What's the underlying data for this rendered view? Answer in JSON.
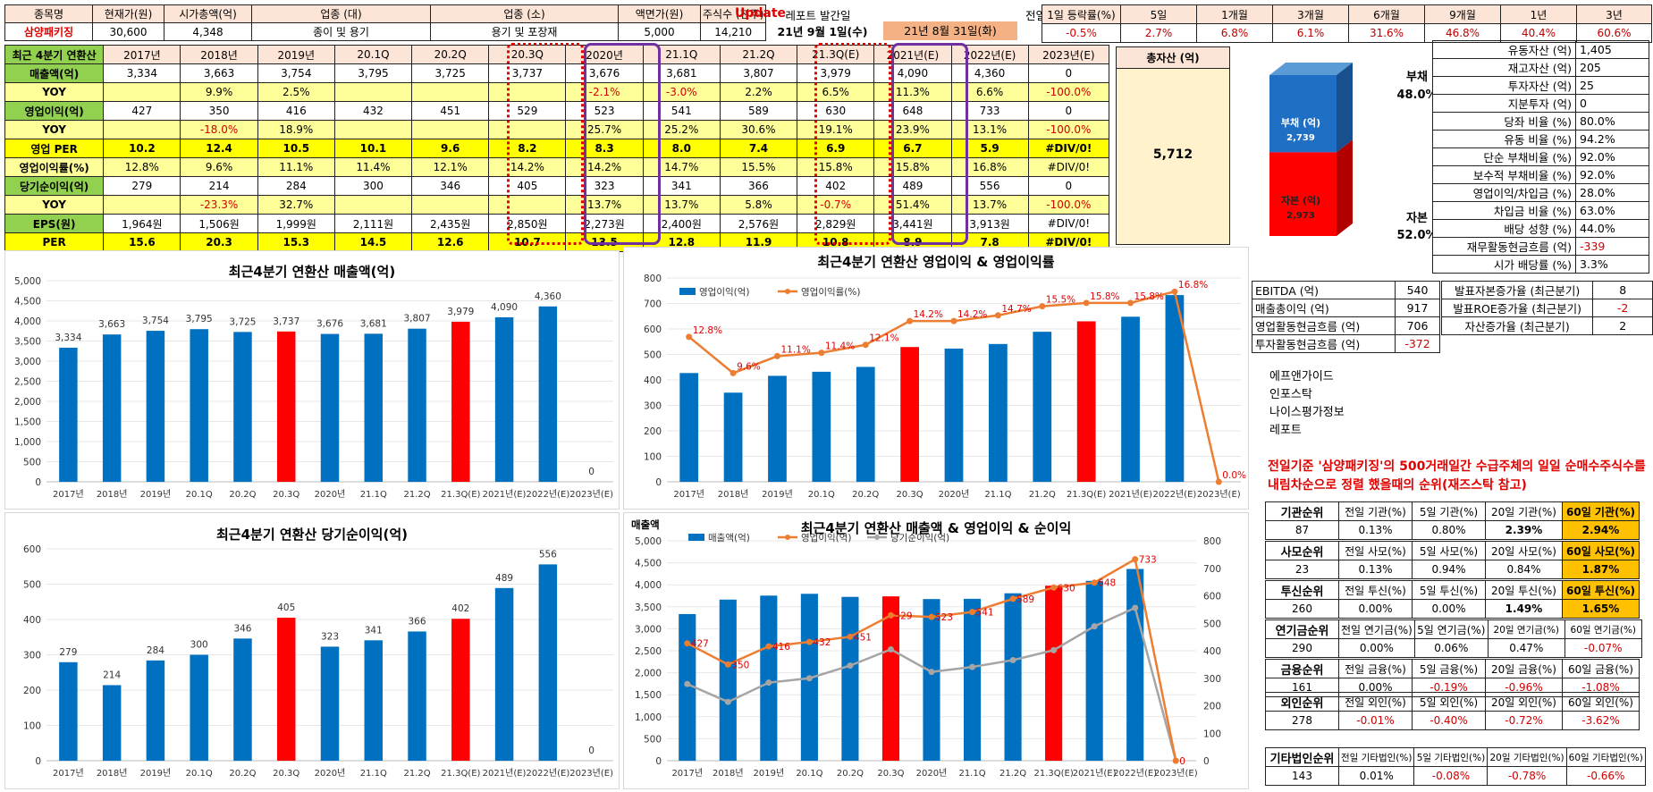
{
  "top": {
    "headers": [
      "종목명",
      "현재가(원)",
      "시가총액(억)",
      "업종 (대)",
      "업종 (소)",
      "액면가(원)",
      "주식수 (천주)"
    ],
    "values": [
      "삼양패키징",
      "30,600",
      "4,348",
      "종이 및 용기",
      "용기 및 포장재",
      "5,000",
      "14,210"
    ],
    "update": "Update",
    "date": "21년 9월 1일(수)",
    "report_label": "레포트 발간일",
    "report_date": "21년 8월 31일(화)",
    "ret_label": "전일 기준",
    "ret_headers": [
      "1일 등락률(%)",
      "5일",
      "1개월",
      "3개월",
      "6개월",
      "9개월",
      "1년",
      "3년"
    ],
    "ret_values": [
      "-0.5%",
      "2.7%",
      "6.8%",
      "6.1%",
      "31.6%",
      "46.8%",
      "40.4%",
      "60.6%"
    ]
  },
  "perf": {
    "header": [
      "최근 4분기 연환산",
      "2017년",
      "2018년",
      "2019년",
      "20.1Q",
      "20.2Q",
      "20.3Q",
      "2020년",
      "21.1Q",
      "21.2Q",
      "21.3Q(E)",
      "2021년(E)",
      "2022년(E)",
      "2023년(E)"
    ],
    "rows": [
      {
        "label": "매출액(억)",
        "style": "n",
        "cells": [
          "3,334",
          "3,663",
          "3,754",
          "3,795",
          "3,725",
          "3,737",
          "3,676",
          "3,681",
          "3,807",
          "3,979",
          "4,090",
          "4,360",
          "0"
        ]
      },
      {
        "label": "YOY",
        "style": "yel",
        "cells": [
          "",
          "9.9%",
          "2.5%",
          "",
          "",
          "",
          "-2.1%",
          "-3.0%",
          "2.2%",
          "6.5%",
          "11.3%",
          "6.6%",
          "-100.0%"
        ]
      },
      {
        "label": "영업이익(억)",
        "style": "n",
        "cells": [
          "427",
          "350",
          "416",
          "432",
          "451",
          "529",
          "523",
          "541",
          "589",
          "630",
          "648",
          "733",
          "0"
        ]
      },
      {
        "label": "YOY",
        "style": "yel",
        "cells": [
          "",
          "-18.0%",
          "18.9%",
          "",
          "",
          "",
          "25.7%",
          "25.2%",
          "30.6%",
          "19.1%",
          "23.9%",
          "13.1%",
          "-100.0%"
        ]
      },
      {
        "label": "영업 PER",
        "style": "per",
        "cells": [
          "10.2",
          "12.4",
          "10.5",
          "10.1",
          "9.6",
          "8.2",
          "8.3",
          "8.0",
          "7.4",
          "6.9",
          "6.7",
          "5.9",
          "#DIV/0!"
        ]
      },
      {
        "label": "영업이익률(%)",
        "style": "yel",
        "cells": [
          "12.8%",
          "9.6%",
          "11.1%",
          "11.4%",
          "12.1%",
          "14.2%",
          "14.2%",
          "14.7%",
          "15.5%",
          "15.8%",
          "15.8%",
          "16.8%",
          "#DIV/0!"
        ]
      },
      {
        "label": "당기순이익(억)",
        "style": "n",
        "cells": [
          "279",
          "214",
          "284",
          "300",
          "346",
          "405",
          "323",
          "341",
          "366",
          "402",
          "489",
          "556",
          "0"
        ]
      },
      {
        "label": "YOY",
        "style": "yel",
        "cells": [
          "",
          "-23.3%",
          "32.7%",
          "",
          "",
          "",
          "13.7%",
          "13.7%",
          "5.8%",
          "-0.7%",
          "51.4%",
          "13.7%",
          "-100.0%"
        ]
      },
      {
        "label": "EPS(원)",
        "style": "n",
        "cells": [
          "1,964원",
          "1,506원",
          "1,999원",
          "2,111원",
          "2,435원",
          "2,850원",
          "2,273원",
          "2,400원",
          "2,576원",
          "2,829원",
          "3,441원",
          "3,913원",
          "#DIV/0!"
        ]
      },
      {
        "label": "PER",
        "style": "per",
        "cells": [
          "15.6",
          "20.3",
          "15.3",
          "14.5",
          "12.6",
          "10.7",
          "13.5",
          "12.8",
          "11.9",
          "10.8",
          "8.9",
          "7.8",
          "#DIV/0!"
        ]
      }
    ]
  },
  "assets": {
    "title": "총자산 (억)",
    "value": "5,712"
  },
  "bs": {
    "debt_label": "부채 (억)",
    "debt_value": "2,739",
    "equity_label": "자본 (억)",
    "equity_value": "2,973",
    "debt_side": "부채",
    "debt_pct": "48.0%",
    "equity_side": "자본",
    "equity_pct": "52.0%",
    "debt_color": "#1f6fc5",
    "equity_color": "#ff0000"
  },
  "ratios": [
    [
      "유동자산 (억)",
      "1,405"
    ],
    [
      "재고자산 (억)",
      "205"
    ],
    [
      "투자자산 (억)",
      "25"
    ],
    [
      "지분투자 (억)",
      "0"
    ],
    [
      "당좌 비율 (%)",
      "80.0%"
    ],
    [
      "유동 비율 (%)",
      "94.2%"
    ],
    [
      "단순 부채비율 (%)",
      "92.0%"
    ],
    [
      "보수적 부채비율 (%)",
      "92.0%"
    ],
    [
      "영업이익/차입금 (%)",
      "28.0%"
    ],
    [
      "차입금 비율 (%)",
      "63.0%"
    ],
    [
      "배당 성향 (%)",
      "44.0%"
    ],
    [
      "재무활동현금흐름 (억)",
      "-339"
    ],
    [
      "시가 배당률 (%)",
      "3.3%"
    ]
  ],
  "cashflow": [
    [
      "EBITDA (억)",
      "540"
    ],
    [
      "매출총이익 (억)",
      "917"
    ],
    [
      "영업활동현금흐름 (억)",
      "706"
    ],
    [
      "투자활동현금흐름 (억)",
      "-372"
    ]
  ],
  "growth": [
    [
      "발표자본증가율 (최근분기)",
      "8"
    ],
    [
      "발표ROE증가율 (최근분기)",
      "-2"
    ],
    [
      "자산증가율 (최근분기)",
      "2"
    ]
  ],
  "sources": [
    "에프앤가이드",
    "인포스탁",
    "나이스평가정보",
    "레포트"
  ],
  "rank_note": "전일기준 '삼양패키징'의 500거래일간 수급주체의 일일 순매수주식수를 내림차순으로 정렬 했을때의 순위(재즈스탁 참고)",
  "rank": [
    {
      "label": "기관순위",
      "rank": "87",
      "heads": [
        "전일 기관(%)",
        "5일 기관(%)",
        "20일 기관(%)",
        "60일 기관(%)"
      ],
      "vals": [
        "0.13%",
        "0.80%",
        "2.39%",
        "2.94%"
      ]
    },
    {
      "label": "사모순위",
      "rank": "23",
      "heads": [
        "전일 사모(%)",
        "5일 사모(%)",
        "20일 사모(%)",
        "60일 사모(%)"
      ],
      "vals": [
        "0.13%",
        "0.94%",
        "0.84%",
        "1.87%"
      ]
    },
    {
      "label": "투신순위",
      "rank": "260",
      "heads": [
        "전일 투신(%)",
        "5일 투신(%)",
        "20일 투신(%)",
        "60일 투신(%)"
      ],
      "vals": [
        "0.00%",
        "0.00%",
        "1.49%",
        "1.65%"
      ]
    },
    {
      "label": "연기금순위",
      "rank": "290",
      "heads": [
        "전일 연기금(%)",
        "5일 연기금(%)",
        "20일 연기금(%)",
        "60일 연기금(%)"
      ],
      "vals": [
        "0.00%",
        "0.06%",
        "0.47%",
        "-0.07%"
      ]
    },
    {
      "label": "금융순위",
      "rank": "161",
      "heads": [
        "전일 금융(%)",
        "5일 금융(%)",
        "20일 금융(%)",
        "60일 금융(%)"
      ],
      "vals": [
        "0.00%",
        "-0.19%",
        "-0.96%",
        "-1.08%"
      ]
    },
    {
      "label": "외인순위",
      "rank": "278",
      "heads": [
        "전일 외인(%)",
        "5일 외인(%)",
        "20일 외인(%)",
        "60일 외인(%)"
      ],
      "vals": [
        "-0.01%",
        "-0.40%",
        "-0.72%",
        "-3.62%"
      ]
    },
    {
      "label": "기타법인순위",
      "rank": "143",
      "heads": [
        "전일 기타법인(%)",
        "5일 기타법인(%)",
        "20일 기타법인(%)",
        "60일 기타법인(%)"
      ],
      "vals": [
        "0.01%",
        "-0.08%",
        "-0.78%",
        "-0.66%"
      ]
    }
  ],
  "chart_data": [
    {
      "type": "bar",
      "title": "최근4분기 연환산 매출액(억)",
      "categories": [
        "2017년",
        "2018년",
        "2019년",
        "20.1Q",
        "20.2Q",
        "20.3Q",
        "2020년",
        "21.1Q",
        "21.2Q",
        "21.3Q(E)",
        "2021년(E)",
        "2022년(E)",
        "2023년(E)"
      ],
      "values": [
        3334,
        3663,
        3754,
        3795,
        3725,
        3737,
        3676,
        3681,
        3807,
        3979,
        4090,
        4360,
        0
      ],
      "ylim": [
        0,
        5000
      ],
      "yticks": [
        "0",
        "500",
        "1,000",
        "1,500",
        "2,000",
        "2,500",
        "3,000",
        "3,500",
        "4,000",
        "4,500",
        "5,000"
      ],
      "labels": [
        "3,334",
        "3,663",
        "3,754",
        "3,795",
        "3,725",
        "3,737",
        "3,676",
        "3,681",
        "3,807",
        "3,979",
        "4,090",
        "4,360",
        "0"
      ],
      "highlight": [
        "20.3Q",
        "21.3Q(E)"
      ],
      "bar_color": "#0070c0",
      "highlight_color": "#ff0000"
    },
    {
      "type": "bar+line",
      "title": "최근4분기 연환산 영업이익 & 영업이익률",
      "categories": [
        "2017년",
        "2018년",
        "2019년",
        "20.1Q",
        "20.2Q",
        "20.3Q",
        "2020년",
        "21.1Q",
        "21.2Q",
        "21.3Q(E)",
        "2021년(E)",
        "2022년(E)",
        "2023년(E)"
      ],
      "series": [
        {
          "name": "영업이익(억)",
          "values": [
            427,
            350,
            416,
            432,
            451,
            529,
            523,
            541,
            589,
            630,
            648,
            733,
            0
          ]
        },
        {
          "name": "영업이익률(%)",
          "values": [
            12.8,
            9.6,
            11.1,
            11.4,
            12.1,
            14.2,
            14.2,
            14.7,
            15.5,
            15.8,
            15.8,
            16.8,
            0
          ],
          "labels": [
            "12.8%",
            "9.6%",
            "11.1%",
            "11.4%",
            "12.1%",
            "14.2%",
            "14.2%",
            "14.7%",
            "15.5%",
            "15.8%",
            "15.8%",
            "16.8%",
            "0.0%"
          ]
        }
      ],
      "ylim": [
        0,
        800
      ],
      "yticks": [
        "0",
        "100",
        "200",
        "300",
        "400",
        "500",
        "600",
        "700",
        "800"
      ],
      "highlight": [
        "20.3Q",
        "21.3Q(E)"
      ],
      "legend": "top-left",
      "bar_color": "#0070c0",
      "highlight_color": "#ff0000",
      "line_color": "#ed7d31"
    },
    {
      "type": "bar",
      "title": "최근4분기 연환산 당기순이익(억)",
      "categories": [
        "2017년",
        "2018년",
        "2019년",
        "20.1Q",
        "20.2Q",
        "20.3Q",
        "2020년",
        "21.1Q",
        "21.2Q",
        "21.3Q(E)",
        "2021년(E)",
        "2022년(E)",
        "2023년(E)"
      ],
      "values": [
        279,
        214,
        284,
        300,
        346,
        405,
        323,
        341,
        366,
        402,
        489,
        556,
        0
      ],
      "ylim": [
        0,
        600
      ],
      "yticks": [
        "0",
        "100",
        "200",
        "300",
        "400",
        "500",
        "600"
      ],
      "labels": [
        "279",
        "214",
        "284",
        "300",
        "346",
        "405",
        "323",
        "341",
        "366",
        "402",
        "489",
        "556",
        "0"
      ],
      "highlight": [
        "20.3Q",
        "21.3Q(E)"
      ],
      "bar_color": "#0070c0",
      "highlight_color": "#ff0000"
    },
    {
      "type": "bar+line",
      "title": "최근4분기 연환산 매출액 & 영업이익 & 순이익",
      "ylabel": "매출액",
      "categories": [
        "2017년",
        "2018년",
        "2019년",
        "20.1Q",
        "20.2Q",
        "20.3Q",
        "2020년",
        "21.1Q",
        "21.2Q",
        "21.3Q(E)",
        "2021년(E)",
        "2022년(E)",
        "2023년(E)"
      ],
      "series": [
        {
          "name": "매출액(억)",
          "values": [
            3334,
            3663,
            3754,
            3795,
            3725,
            3737,
            3676,
            3681,
            3807,
            3979,
            4090,
            4360,
            0
          ]
        },
        {
          "name": "영업이익(억)",
          "values": [
            427,
            350,
            416,
            432,
            451,
            529,
            523,
            541,
            589,
            630,
            648,
            733,
            0
          ],
          "labels": [
            "427",
            "350",
            "416",
            "432",
            "451",
            "529",
            "523",
            "541",
            "589",
            "630",
            "648",
            "733",
            "0"
          ]
        },
        {
          "name": "당기순이익(억)",
          "values": [
            279,
            214,
            284,
            300,
            346,
            405,
            323,
            341,
            366,
            402,
            489,
            556,
            0
          ]
        }
      ],
      "ylim": [
        0,
        5000
      ],
      "y2lim": [
        0,
        800
      ],
      "yticks": [
        "0",
        "500",
        "1,000",
        "1,500",
        "2,000",
        "2,500",
        "3,000",
        "3,500",
        "4,000",
        "4,500",
        "5,000"
      ],
      "y2ticks": [
        "0",
        "100",
        "200",
        "300",
        "400",
        "500",
        "600",
        "700",
        "800"
      ],
      "highlight": [
        "20.3Q",
        "21.3Q(E)"
      ],
      "legend": "top-left",
      "bar_color": "#0070c0",
      "highlight_color": "#ff0000",
      "line_color": "#ed7d31",
      "line2_color": "#a5a5a5"
    }
  ]
}
